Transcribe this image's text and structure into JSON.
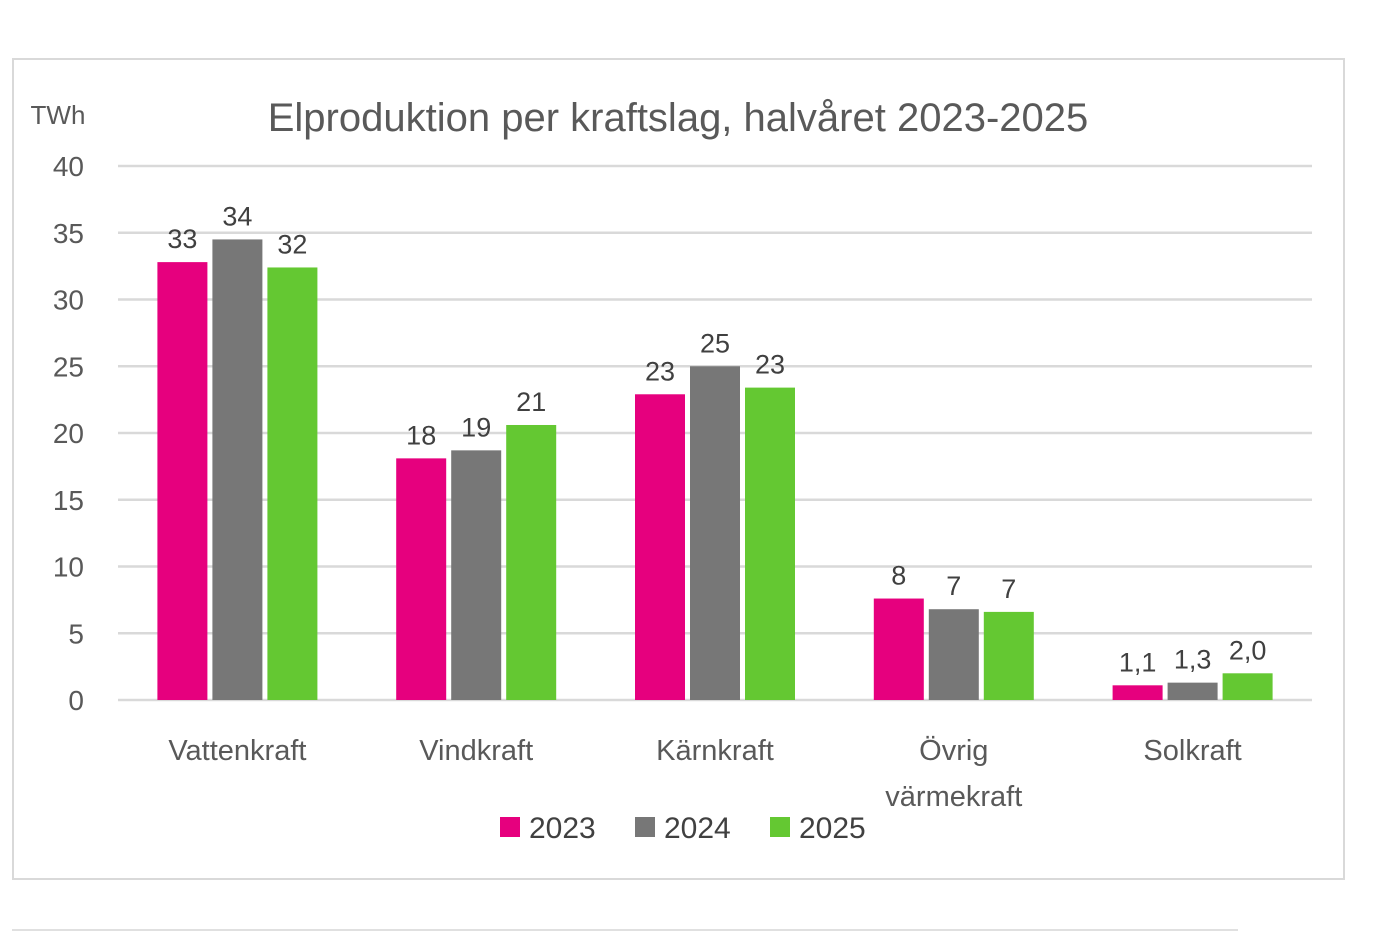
{
  "chart_data": {
    "type": "bar",
    "title": "Elproduktion per kraftslag, halvåret 2023-2025",
    "ylabel": "TWh",
    "xlabel": "",
    "ylim": [
      0,
      40
    ],
    "yticks": [
      0,
      5,
      10,
      15,
      20,
      25,
      30,
      35,
      40
    ],
    "grid": true,
    "legend_position": "bottom",
    "categories": [
      [
        "Vattenkraft"
      ],
      [
        "Vindkraft"
      ],
      [
        "Kärnkraft"
      ],
      [
        "Övrig",
        "värmekraft"
      ],
      [
        "Solkraft"
      ]
    ],
    "series": [
      {
        "name": "2023",
        "color": "#e6007e",
        "values": [
          32.8,
          18.1,
          22.9,
          7.6,
          1.1
        ],
        "labels": [
          "33",
          "18",
          "23",
          "8",
          "1,1"
        ]
      },
      {
        "name": "2024",
        "color": "#777777",
        "values": [
          34.5,
          18.7,
          25.0,
          6.8,
          1.3
        ],
        "labels": [
          "34",
          "19",
          "25",
          "7",
          "1,3"
        ]
      },
      {
        "name": "2025",
        "color": "#64c832",
        "values": [
          32.4,
          20.6,
          23.4,
          6.6,
          2.0
        ],
        "labels": [
          "32",
          "21",
          "23",
          "7",
          "2,0"
        ]
      }
    ]
  }
}
